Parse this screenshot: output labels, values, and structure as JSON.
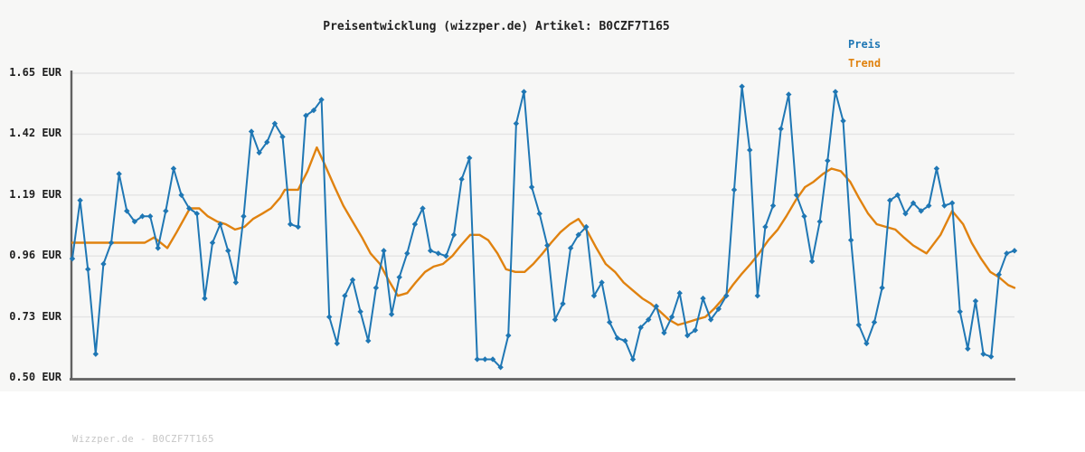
{
  "title": "Preisentwicklung (wizzper.de) Artikel: B0CZF7T165",
  "footer": "Wizzper.de - B0CZF7T165",
  "legend": {
    "preis": "Preis",
    "trend": "Trend"
  },
  "colors": {
    "preis": "#1f77b4",
    "trend": "#e0820f",
    "figure_bg": "#f7f7f6",
    "page_bg": "#ffffff",
    "grid": "#e4e4e4",
    "axis": "#616161",
    "title_text": "#222222",
    "tick_text": "#1f1f1f",
    "footer_text": "#c6c6c6"
  },
  "chart_data": {
    "type": "line",
    "title": "Preisentwicklung (wizzper.de) Artikel: B0CZF7T165",
    "xlabel": "",
    "ylabel": "EUR",
    "ylim": [
      0.5,
      1.65
    ],
    "grid": "horizontal",
    "legend_position": "top-right",
    "x_axis_labels_visible": false,
    "yticks": [
      {
        "value": 1.65,
        "label": "1.65 EUR"
      },
      {
        "value": 1.42,
        "label": "1.42 EUR"
      },
      {
        "value": 1.19,
        "label": "1.19 EUR"
      },
      {
        "value": 0.96,
        "label": "0.96 EUR"
      },
      {
        "value": 0.73,
        "label": "0.73 EUR"
      },
      {
        "value": 0.5,
        "label": "0.50 EUR"
      }
    ],
    "series": [
      {
        "name": "Preis",
        "color": "#1f77b4",
        "marker": "diamond",
        "values": [
          0.95,
          1.17,
          0.91,
          0.59,
          0.93,
          1.01,
          1.27,
          1.13,
          1.09,
          1.11,
          1.11,
          0.99,
          1.13,
          1.29,
          1.19,
          1.14,
          1.12,
          0.8,
          1.01,
          1.08,
          0.98,
          0.86,
          1.11,
          1.43,
          1.35,
          1.39,
          1.46,
          1.41,
          1.08,
          1.07,
          1.49,
          1.51,
          1.55,
          0.73,
          0.63,
          0.81,
          0.87,
          0.75,
          0.64,
          0.84,
          0.98,
          0.74,
          0.88,
          0.97,
          1.08,
          1.14,
          0.98,
          0.97,
          0.96,
          1.04,
          1.25,
          1.33,
          0.57,
          0.57,
          0.57,
          0.54,
          0.66,
          1.46,
          1.58,
          1.22,
          1.12,
          1.0,
          0.72,
          0.78,
          0.99,
          1.04,
          1.07,
          0.81,
          0.86,
          0.71,
          0.65,
          0.64,
          0.57,
          0.69,
          0.72,
          0.77,
          0.67,
          0.73,
          0.82,
          0.66,
          0.68,
          0.8,
          0.72,
          0.76,
          0.81,
          1.21,
          1.6,
          1.36,
          0.81,
          1.07,
          1.15,
          1.44,
          1.57,
          1.19,
          1.11,
          0.94,
          1.09,
          1.32,
          1.58,
          1.47,
          1.02,
          0.7,
          0.63,
          0.71,
          0.84,
          1.17,
          1.19,
          1.12,
          1.16,
          1.13,
          1.15,
          1.29,
          1.15,
          1.16,
          0.75,
          0.61,
          0.79,
          0.59,
          0.58,
          0.89,
          0.97,
          0.98
        ]
      },
      {
        "name": "Trend",
        "color": "#e0820f",
        "marker": "none",
        "points": [
          [
            0,
            1.01
          ],
          [
            9.3,
            1.01
          ],
          [
            10.5,
            1.03
          ],
          [
            12.2,
            0.99
          ],
          [
            13.4,
            1.05
          ],
          [
            15.1,
            1.14
          ],
          [
            16.3,
            1.14
          ],
          [
            17.4,
            1.11
          ],
          [
            18.6,
            1.09
          ],
          [
            19.7,
            1.08
          ],
          [
            20.9,
            1.06
          ],
          [
            22.1,
            1.07
          ],
          [
            23.2,
            1.1
          ],
          [
            24.4,
            1.12
          ],
          [
            25.5,
            1.14
          ],
          [
            26.7,
            1.18
          ],
          [
            27.3,
            1.21
          ],
          [
            29,
            1.21
          ],
          [
            30.2,
            1.28
          ],
          [
            31.4,
            1.37
          ],
          [
            32.5,
            1.3
          ],
          [
            33.7,
            1.22
          ],
          [
            34.8,
            1.15
          ],
          [
            36,
            1.09
          ],
          [
            37.2,
            1.03
          ],
          [
            38.3,
            0.97
          ],
          [
            39.5,
            0.93
          ],
          [
            40.6,
            0.87
          ],
          [
            41.8,
            0.81
          ],
          [
            43,
            0.82
          ],
          [
            44.1,
            0.86
          ],
          [
            45.3,
            0.9
          ],
          [
            46.4,
            0.92
          ],
          [
            47.6,
            0.93
          ],
          [
            48.8,
            0.96
          ],
          [
            49.9,
            1.0
          ],
          [
            51.1,
            1.04
          ],
          [
            52.3,
            1.04
          ],
          [
            53.4,
            1.02
          ],
          [
            54.6,
            0.97
          ],
          [
            55.7,
            0.91
          ],
          [
            56.9,
            0.9
          ],
          [
            58.1,
            0.9
          ],
          [
            59.2,
            0.93
          ],
          [
            60.4,
            0.97
          ],
          [
            61.5,
            1.01
          ],
          [
            62.7,
            1.05
          ],
          [
            63.9,
            1.08
          ],
          [
            65,
            1.1
          ],
          [
            66.2,
            1.05
          ],
          [
            67.3,
            0.99
          ],
          [
            68.5,
            0.93
          ],
          [
            69.7,
            0.9
          ],
          [
            70.8,
            0.86
          ],
          [
            72,
            0.83
          ],
          [
            73.2,
            0.8
          ],
          [
            74.3,
            0.78
          ],
          [
            75.5,
            0.75
          ],
          [
            76.6,
            0.72
          ],
          [
            77.8,
            0.7
          ],
          [
            79,
            0.71
          ],
          [
            80.1,
            0.72
          ],
          [
            81.3,
            0.73
          ],
          [
            82.4,
            0.76
          ],
          [
            83.6,
            0.8
          ],
          [
            84.8,
            0.85
          ],
          [
            85.9,
            0.89
          ],
          [
            87.1,
            0.93
          ],
          [
            88.2,
            0.97
          ],
          [
            89.4,
            1.02
          ],
          [
            90.6,
            1.06
          ],
          [
            91.7,
            1.11
          ],
          [
            92.9,
            1.17
          ],
          [
            94.1,
            1.22
          ],
          [
            95.2,
            1.24
          ],
          [
            96.4,
            1.27
          ],
          [
            97.5,
            1.29
          ],
          [
            98.7,
            1.28
          ],
          [
            99.9,
            1.24
          ],
          [
            101,
            1.18
          ],
          [
            102.2,
            1.12
          ],
          [
            103.3,
            1.08
          ],
          [
            104.5,
            1.07
          ],
          [
            105.7,
            1.06
          ],
          [
            106.8,
            1.03
          ],
          [
            108,
            1.0
          ],
          [
            109.7,
            0.97
          ],
          [
            111.5,
            1.04
          ],
          [
            113,
            1.13
          ],
          [
            114.4,
            1.08
          ],
          [
            115.5,
            1.01
          ],
          [
            116.7,
            0.95
          ],
          [
            117.9,
            0.9
          ],
          [
            119,
            0.88
          ],
          [
            120.2,
            0.85
          ],
          [
            121,
            0.84
          ]
        ]
      }
    ]
  }
}
